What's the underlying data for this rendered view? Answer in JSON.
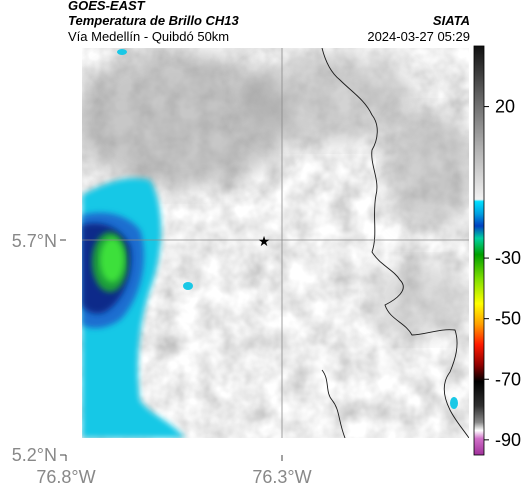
{
  "header": {
    "satellite": "GOES-EAST",
    "product": "Temperatura de Brillo CH13",
    "region": "Vía Medellín - Quibdó 50km",
    "organization": "SIATA",
    "timestamp": "2024-03-27 05:29"
  },
  "map": {
    "lat_labels": [
      "5.7°N",
      "5.2°N"
    ],
    "lon_labels": [
      "76.8°W",
      "76.3°W"
    ],
    "marker": "star",
    "colors": {
      "background_cloud": "#cfcfcf",
      "cold_cloud_cyan": "#19c8e6",
      "cold_cloud_blue": "#0a3c9c",
      "cold_cloud_green": "#2ed02e",
      "border_line": "#1a1a1a",
      "gridline": "#9a9a9a"
    }
  },
  "colorbar": {
    "labels": [
      "20",
      "-30",
      "-50",
      "-70",
      "-90"
    ],
    "label_values": [
      20,
      -30,
      -50,
      -70,
      -90
    ],
    "range": [
      -95,
      40
    ]
  }
}
